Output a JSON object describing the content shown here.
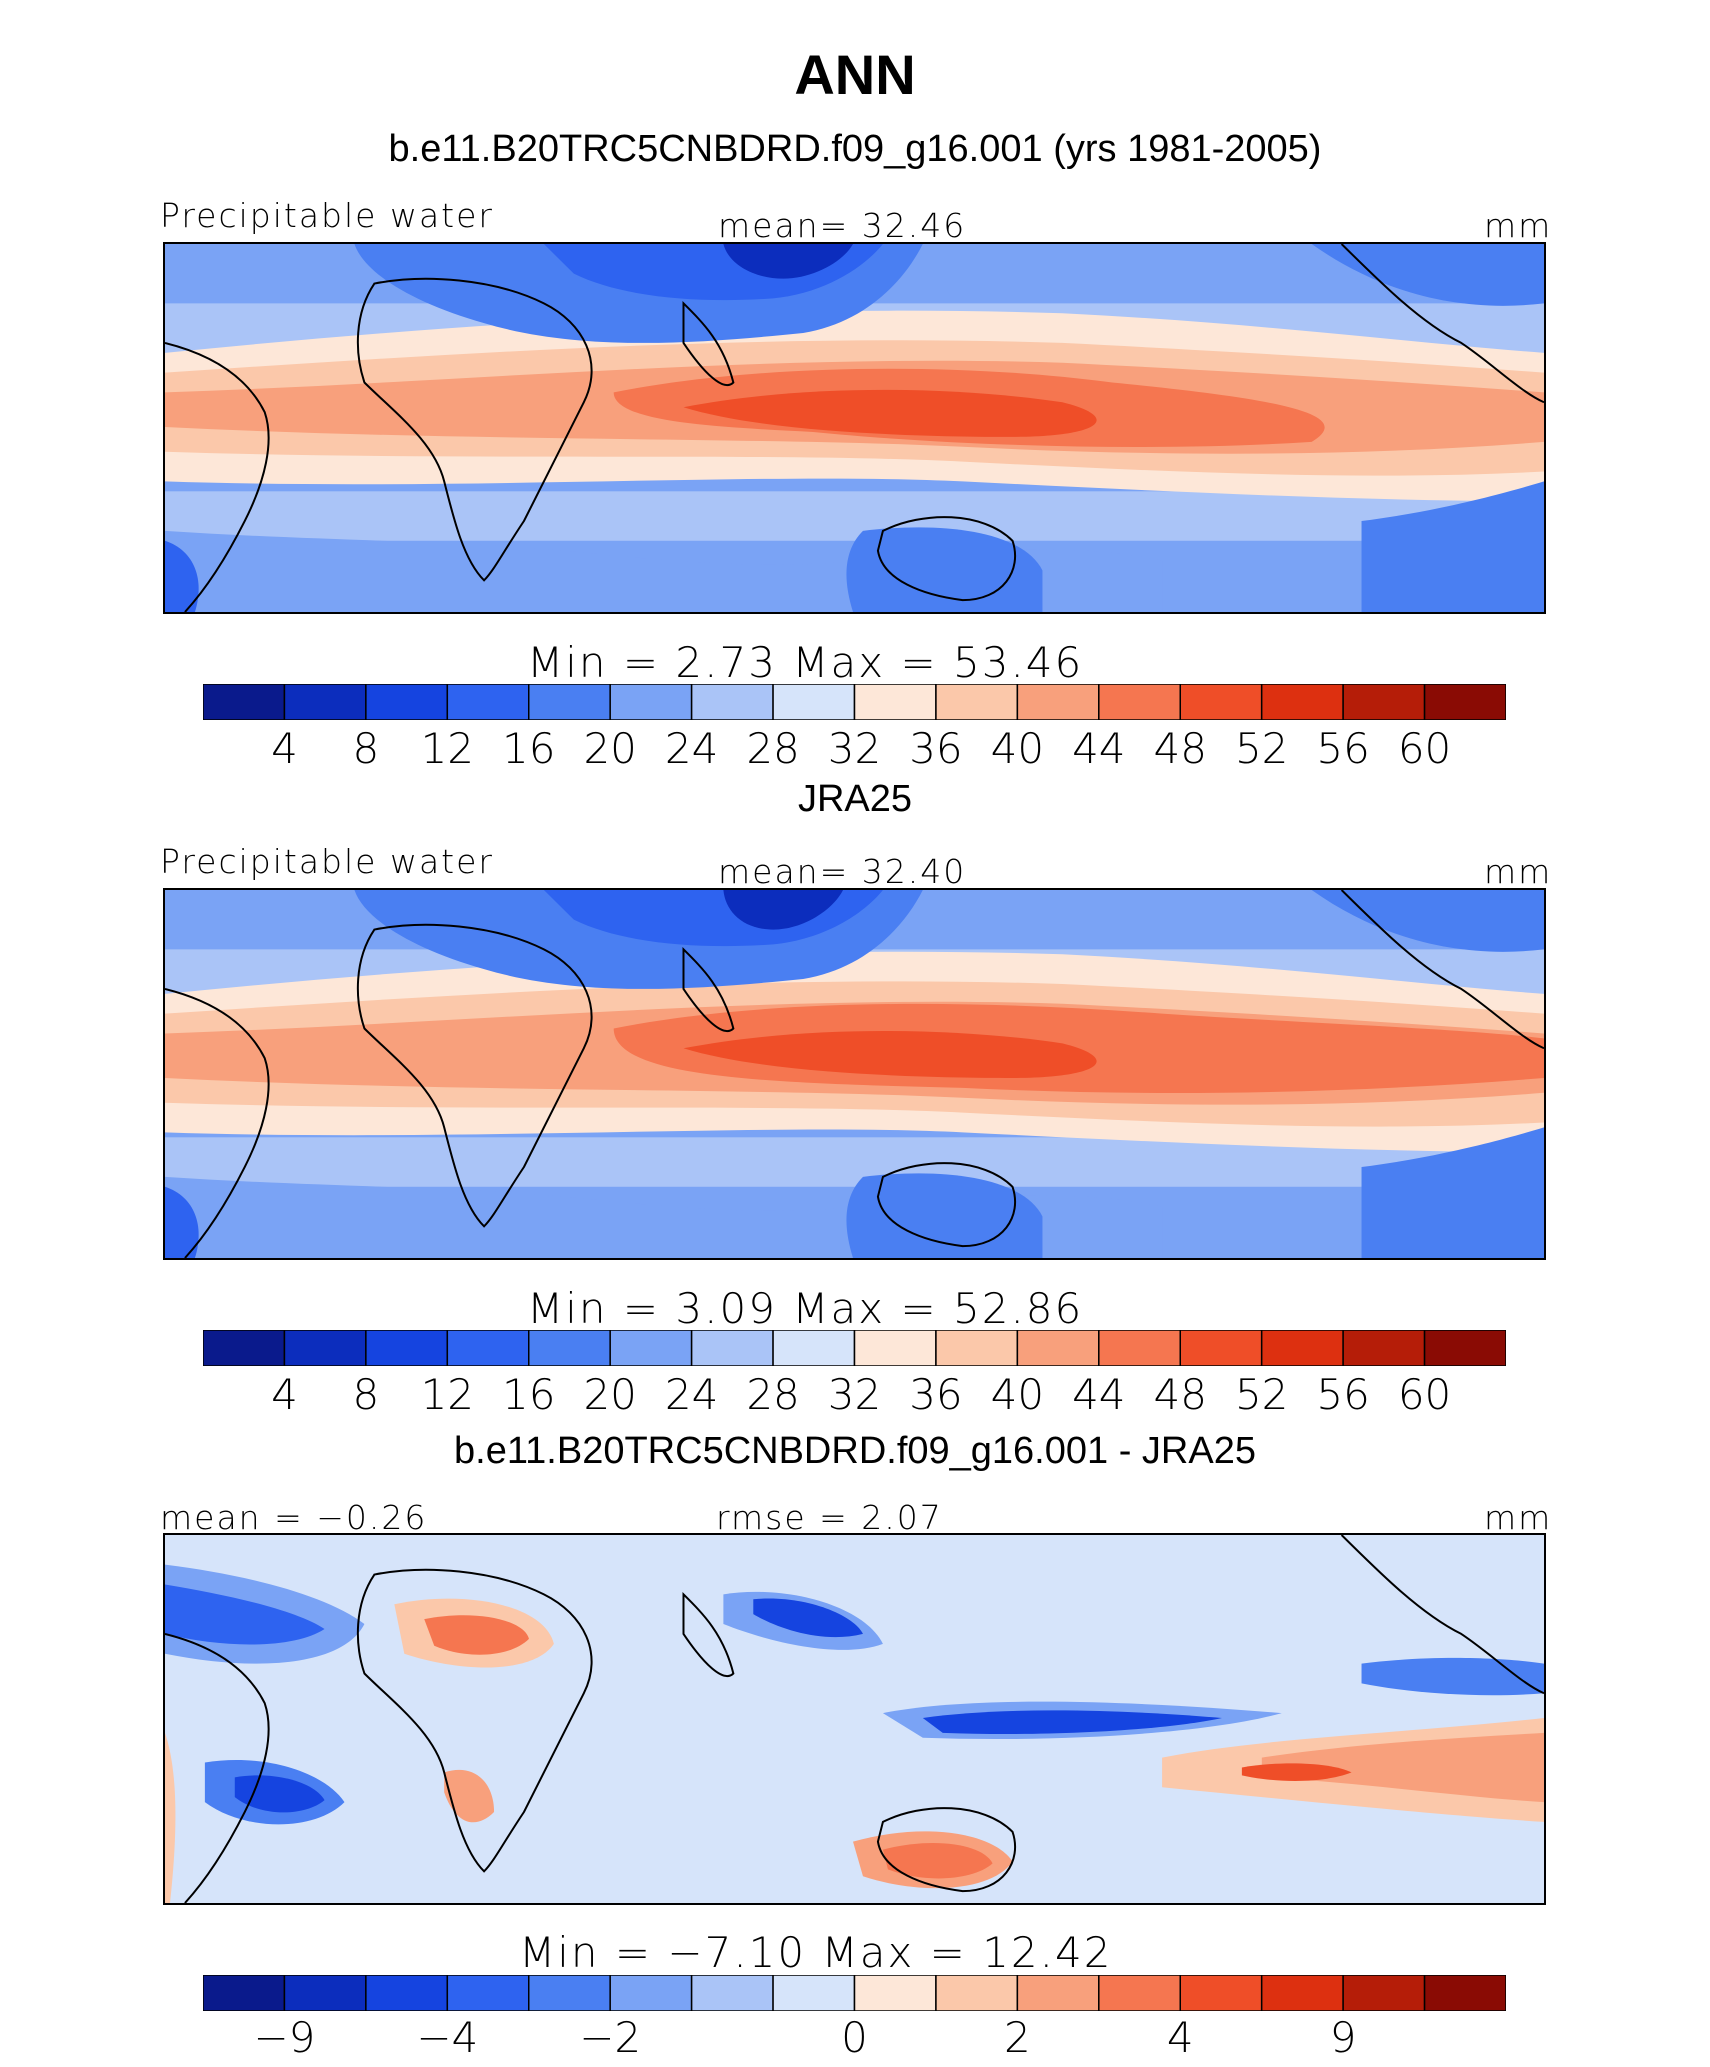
{
  "page": {
    "title": "ANN"
  },
  "panels": [
    {
      "id": "model",
      "title": "b.e11.B20TRC5CNBDRD.f09_g16.001 (yrs 1981-2005)",
      "left_label": "Precipitable water",
      "center_label": "mean=   32.46",
      "units": "mm",
      "minmax_label": "Min  =     2.73  Max  =   53.46",
      "colorbar_ticks": [
        "4",
        "8",
        "12",
        "16",
        "20",
        "24",
        "28",
        "32",
        "36",
        "40",
        "44",
        "48",
        "52",
        "56",
        "60"
      ]
    },
    {
      "id": "obs",
      "title": "JRA25",
      "left_label": "Precipitable water",
      "center_label": "mean=   32.40",
      "units": "mm",
      "minmax_label": "Min  =     3.09  Max  =   52.86",
      "colorbar_ticks": [
        "4",
        "8",
        "12",
        "16",
        "20",
        "24",
        "28",
        "32",
        "36",
        "40",
        "44",
        "48",
        "52",
        "56",
        "60"
      ]
    },
    {
      "id": "diff",
      "title": "b.e11.B20TRC5CNBDRD.f09_g16.001 - JRA25",
      "left_label": "mean  =   −0.26",
      "center_label": "rmse  =     2.07",
      "units": "mm",
      "minmax_label": "Min  =   −7.10  Max  =   12.42",
      "colorbar_ticks": [
        "−9",
        "−4",
        "−2",
        "0",
        "2",
        "4",
        "9"
      ]
    }
  ],
  "chart_data": [
    {
      "type": "heatmap",
      "title": "b.e11.B20TRC5CNBDRD.f09_g16.001 (yrs 1981-2005)",
      "variable": "Precipitable water",
      "units": "mm",
      "mean": 32.46,
      "min": 2.73,
      "max": 53.46,
      "levels": [
        4,
        8,
        12,
        16,
        20,
        24,
        28,
        32,
        36,
        40,
        44,
        48,
        52,
        56,
        60
      ],
      "colors": [
        "#0a1a8c",
        "#0c2dbd",
        "#1544e0",
        "#2e63f0",
        "#4a7ff2",
        "#7aa3f5",
        "#aac4f7",
        "#d6e4fa",
        "#fde7d8",
        "#fbc8aa",
        "#f8a07c",
        "#f57650",
        "#ef4e28",
        "#dd3010",
        "#b51d08",
        "#8a0b04"
      ]
    },
    {
      "type": "heatmap",
      "title": "JRA25",
      "variable": "Precipitable water",
      "units": "mm",
      "mean": 32.4,
      "min": 3.09,
      "max": 52.86,
      "levels": [
        4,
        8,
        12,
        16,
        20,
        24,
        28,
        32,
        36,
        40,
        44,
        48,
        52,
        56,
        60
      ],
      "colors": [
        "#0a1a8c",
        "#0c2dbd",
        "#1544e0",
        "#2e63f0",
        "#4a7ff2",
        "#7aa3f5",
        "#aac4f7",
        "#d6e4fa",
        "#fde7d8",
        "#fbc8aa",
        "#f8a07c",
        "#f57650",
        "#ef4e28",
        "#dd3010",
        "#b51d08",
        "#8a0b04"
      ]
    },
    {
      "type": "heatmap",
      "title": "b.e11.B20TRC5CNBDRD.f09_g16.001 - JRA25",
      "units": "mm",
      "mean": -0.26,
      "rmse": 2.07,
      "min": -7.1,
      "max": 12.42,
      "levels": [
        -9,
        -4,
        -2,
        0,
        2,
        4,
        9
      ],
      "colors": [
        "#0a1a8c",
        "#0c2dbd",
        "#1544e0",
        "#2e63f0",
        "#4a7ff2",
        "#7aa3f5",
        "#aac4f7",
        "#d6e4fa",
        "#fde7d8",
        "#fbc8aa",
        "#f8a07c",
        "#f57650",
        "#ef4e28",
        "#dd3010",
        "#b51d08",
        "#8a0b04"
      ]
    }
  ]
}
